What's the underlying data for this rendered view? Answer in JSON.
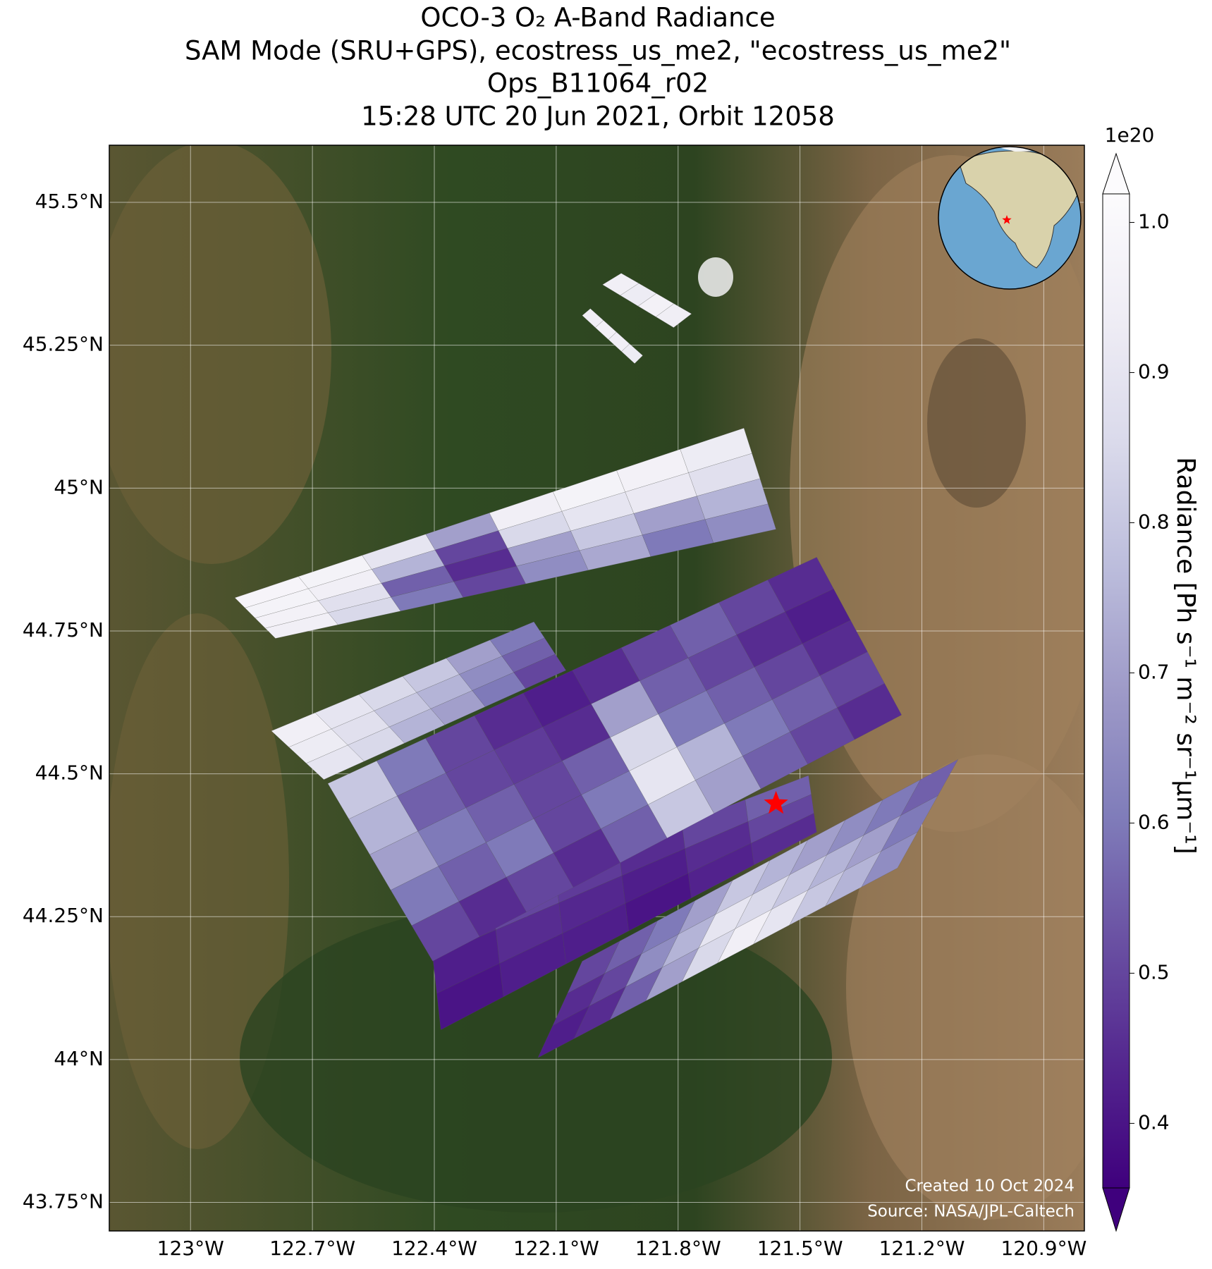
{
  "chart_data": {
    "type": "swath_map",
    "title": [
      "OCO-3 O₂ A-Band Radiance",
      "SAM Mode (SRU+GPS), ecostress_us_me2, \"ecostress_us_me2\"",
      "Ops_B11064_r02",
      "15:28 UTC 20 Jun 2021, Orbit 12058"
    ],
    "xlim": [
      -123.2,
      -120.8
    ],
    "ylim": [
      43.7,
      45.6
    ],
    "xticks": [
      {
        "value": -123,
        "label": "123°W"
      },
      {
        "value": -122.7,
        "label": "122.7°W"
      },
      {
        "value": -122.4,
        "label": "122.4°W"
      },
      {
        "value": -122.1,
        "label": "122.1°W"
      },
      {
        "value": -121.8,
        "label": "121.8°W"
      },
      {
        "value": -121.5,
        "label": "121.5°W"
      },
      {
        "value": -121.2,
        "label": "121.2°W"
      },
      {
        "value": -120.9,
        "label": "120.9°W"
      }
    ],
    "yticks": [
      {
        "value": 45.5,
        "label": "45.5°N"
      },
      {
        "value": 45.25,
        "label": "45.25°N"
      },
      {
        "value": 45,
        "label": "45°N"
      },
      {
        "value": 44.75,
        "label": "44.75°N"
      },
      {
        "value": 44.5,
        "label": "44.5°N"
      },
      {
        "value": 44.25,
        "label": "44.25°N"
      },
      {
        "value": 44,
        "label": "44°N"
      },
      {
        "value": 43.75,
        "label": "43.75°N"
      }
    ],
    "grid": true,
    "colorbar": {
      "label": "Radiance [Ph s⁻¹ m⁻² sr⁻¹μm⁻¹]",
      "multiplier_label": "1e20",
      "clim": [
        0.357,
        1.019
      ],
      "ticks": [
        0.4,
        0.5,
        0.6,
        0.7,
        0.8,
        0.9,
        {
          "value": 1,
          "label": "1.0"
        }
      ],
      "colors": [
        "#3f007d",
        "#54278f",
        "#6a51a3",
        "#807dba",
        "#9e9ac8",
        "#bcbddc",
        "#dadaeb",
        "#efedf5",
        "#fcfbfd"
      ],
      "extend": "both"
    },
    "target": {
      "lon": -121.559,
      "lat": 44.448,
      "color": "#ff0000"
    },
    "swaths": [
      {
        "corners": [
          [
            -122.414,
            44.243
          ],
          [
            -121.479,
            44.497
          ],
          [
            -121.459,
            44.398
          ],
          [
            -122.384,
            44.052
          ]
        ],
        "values": [
          [
            0.45,
            0.5,
            0.48,
            0.45,
            0.5,
            0.55
          ],
          [
            0.42,
            0.45,
            0.44,
            0.42,
            0.45,
            0.5
          ],
          [
            0.4,
            0.42,
            0.42,
            0.4,
            0.43,
            0.45
          ]
        ]
      },
      {
        "corners": [
          [
            -122.662,
            44.483
          ],
          [
            -121.459,
            44.879
          ],
          [
            -121.25,
            44.603
          ],
          [
            -122.404,
            44.172
          ]
        ],
        "values": [
          [
            0.8,
            0.6,
            0.5,
            0.45,
            0.42,
            0.45,
            0.5,
            0.55,
            0.5,
            0.45
          ],
          [
            0.75,
            0.55,
            0.5,
            0.48,
            0.45,
            0.7,
            0.55,
            0.5,
            0.45,
            0.42
          ],
          [
            0.7,
            0.6,
            0.55,
            0.5,
            0.55,
            0.85,
            0.6,
            0.55,
            0.5,
            0.45
          ],
          [
            0.6,
            0.55,
            0.6,
            0.5,
            0.6,
            0.9,
            0.75,
            0.6,
            0.55,
            0.5
          ],
          [
            0.5,
            0.45,
            0.5,
            0.45,
            0.55,
            0.8,
            0.7,
            0.55,
            0.5,
            0.45
          ]
        ]
      },
      {
        "corners": [
          [
            -122.801,
            44.575
          ],
          [
            -122.155,
            44.766
          ],
          [
            -122.076,
            44.681
          ],
          [
            -122.672,
            44.49
          ]
        ],
        "values": [
          [
            0.95,
            0.9,
            0.85,
            0.8,
            0.7,
            0.6
          ],
          [
            0.93,
            0.88,
            0.8,
            0.75,
            0.65,
            0.55
          ],
          [
            0.9,
            0.85,
            0.75,
            0.7,
            0.6,
            0.5
          ]
        ]
      },
      {
        "corners": [
          [
            -122.891,
            44.808
          ],
          [
            -121.638,
            45.105
          ],
          [
            -121.559,
            44.928
          ],
          [
            -122.791,
            44.737
          ]
        ],
        "values": [
          [
            0.98,
            0.97,
            0.9,
            0.7,
            0.95,
            0.97,
            0.96,
            0.93
          ],
          [
            0.97,
            0.95,
            0.75,
            0.5,
            0.85,
            0.9,
            0.92,
            0.88
          ],
          [
            0.96,
            0.88,
            0.55,
            0.45,
            0.7,
            0.8,
            0.7,
            0.75
          ],
          [
            0.95,
            0.85,
            0.6,
            0.5,
            0.65,
            0.72,
            0.6,
            0.65
          ]
        ]
      },
      {
        "corners": [
          [
            -122.036,
            44.172
          ],
          [
            -121.111,
            44.525
          ],
          [
            -121.26,
            44.335
          ],
          [
            -122.145,
            44.003
          ]
        ],
        "values": [
          [
            0.5,
            0.55,
            0.6,
            0.7,
            0.8,
            0.75,
            0.7,
            0.65,
            0.6,
            0.55
          ],
          [
            0.45,
            0.5,
            0.65,
            0.75,
            0.9,
            0.85,
            0.8,
            0.75,
            0.7,
            0.6
          ],
          [
            0.42,
            0.45,
            0.55,
            0.7,
            0.85,
            0.95,
            0.9,
            0.8,
            0.75,
            0.65
          ]
        ]
      },
      {
        "corners": [
          [
            -121.94,
            45.376
          ],
          [
            -121.767,
            45.305
          ],
          [
            -121.811,
            45.281
          ],
          [
            -121.986,
            45.356
          ]
        ],
        "values": [
          [
            0.95,
            0.93,
            0.96,
            0.94
          ]
        ]
      },
      {
        "corners": [
          [
            -122.016,
            45.314
          ],
          [
            -121.887,
            45.232
          ],
          [
            -121.907,
            45.218
          ],
          [
            -122.036,
            45.302
          ]
        ],
        "values": [
          [
            0.94,
            0.96,
            0.95,
            0.93
          ]
        ]
      }
    ],
    "footnotes": [
      "Created 10 Oct 2024",
      "Source: NASA/JPL-Caltech"
    ]
  }
}
